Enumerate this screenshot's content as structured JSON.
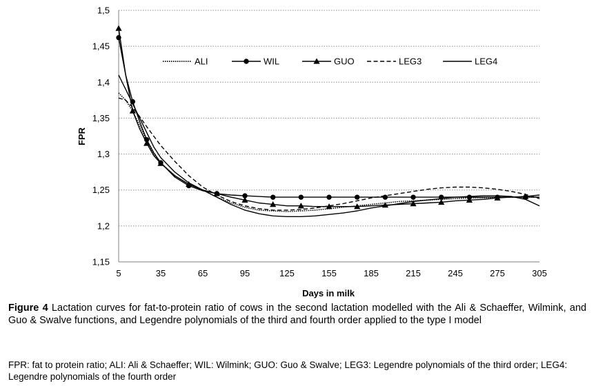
{
  "chart_data": {
    "type": "line",
    "ylabel": "FPR",
    "xlabel": "Days in milk",
    "xlim": [
      5,
      305
    ],
    "ylim": [
      1.15,
      1.5
    ],
    "x_ticks": [
      5,
      35,
      65,
      95,
      125,
      155,
      185,
      215,
      245,
      275,
      305
    ],
    "x_tick_labels": [
      "5",
      "35",
      "65",
      "95",
      "125",
      "155",
      "185",
      "215",
      "245",
      "275",
      "305"
    ],
    "y_ticks": [
      1.15,
      1.2,
      1.25,
      1.3,
      1.35,
      1.4,
      1.45,
      1.5
    ],
    "y_tick_labels": [
      "1,15",
      "1,2",
      "1,25",
      "1,3",
      "1,35",
      "1,4",
      "1,45",
      "1,5"
    ],
    "grid": "horizontal dotted",
    "legend_position": "top",
    "series": [
      {
        "name": "ALI",
        "style": "dotted",
        "marker": "none",
        "x": [
          5,
          10,
          15,
          20,
          25,
          30,
          35,
          45,
          55,
          65,
          75,
          85,
          95,
          105,
          115,
          125,
          135,
          145,
          155,
          165,
          175,
          185,
          195,
          205,
          215,
          225,
          235,
          245,
          255,
          265,
          275,
          285,
          295,
          305
        ],
        "y": [
          1.385,
          1.375,
          1.36,
          1.34,
          1.318,
          1.3,
          1.288,
          1.27,
          1.258,
          1.25,
          1.24,
          1.232,
          1.226,
          1.222,
          1.221,
          1.22,
          1.221,
          1.222,
          1.224,
          1.226,
          1.228,
          1.23,
          1.232,
          1.234,
          1.235,
          1.236,
          1.237,
          1.238,
          1.239,
          1.239,
          1.24,
          1.24,
          1.24,
          1.24
        ]
      },
      {
        "name": "WIL",
        "style": "solid",
        "marker": "circle",
        "x": [
          5,
          10,
          15,
          20,
          25,
          30,
          35,
          45,
          55,
          65,
          75,
          85,
          95,
          105,
          115,
          125,
          135,
          145,
          155,
          165,
          175,
          185,
          195,
          205,
          215,
          225,
          235,
          245,
          255,
          265,
          275,
          285,
          295,
          305
        ],
        "y": [
          1.462,
          1.41,
          1.373,
          1.345,
          1.32,
          1.302,
          1.288,
          1.268,
          1.256,
          1.249,
          1.245,
          1.243,
          1.242,
          1.241,
          1.24,
          1.24,
          1.24,
          1.24,
          1.24,
          1.24,
          1.24,
          1.24,
          1.24,
          1.24,
          1.24,
          1.24,
          1.24,
          1.24,
          1.24,
          1.24,
          1.24,
          1.24,
          1.24,
          1.24
        ]
      },
      {
        "name": "GUO",
        "style": "solid",
        "marker": "triangle",
        "x": [
          5,
          10,
          15,
          20,
          25,
          30,
          35,
          45,
          55,
          65,
          75,
          85,
          95,
          105,
          115,
          125,
          135,
          145,
          155,
          165,
          175,
          185,
          195,
          205,
          215,
          225,
          235,
          245,
          255,
          265,
          275,
          285,
          295,
          305
        ],
        "y": [
          1.475,
          1.41,
          1.36,
          1.335,
          1.315,
          1.298,
          1.287,
          1.27,
          1.258,
          1.25,
          1.245,
          1.24,
          1.236,
          1.232,
          1.23,
          1.228,
          1.228,
          1.227,
          1.227,
          1.227,
          1.227,
          1.228,
          1.229,
          1.23,
          1.231,
          1.232,
          1.233,
          1.235,
          1.236,
          1.237,
          1.239,
          1.24,
          1.241,
          1.243
        ]
      },
      {
        "name": "LEG3",
        "style": "dashed",
        "marker": "none",
        "x": [
          5,
          10,
          15,
          20,
          25,
          30,
          35,
          45,
          55,
          65,
          75,
          85,
          95,
          105,
          115,
          125,
          135,
          145,
          155,
          165,
          175,
          185,
          195,
          205,
          215,
          225,
          235,
          245,
          255,
          265,
          275,
          285,
          295,
          305
        ],
        "y": [
          1.378,
          1.375,
          1.365,
          1.352,
          1.338,
          1.325,
          1.312,
          1.29,
          1.27,
          1.254,
          1.243,
          1.234,
          1.228,
          1.224,
          1.222,
          1.222,
          1.223,
          1.225,
          1.228,
          1.231,
          1.235,
          1.239,
          1.242,
          1.245,
          1.248,
          1.251,
          1.253,
          1.254,
          1.254,
          1.253,
          1.251,
          1.248,
          1.244,
          1.238
        ]
      },
      {
        "name": "LEG4",
        "style": "solid",
        "marker": "none",
        "x": [
          5,
          10,
          15,
          20,
          25,
          30,
          35,
          45,
          55,
          65,
          75,
          85,
          95,
          105,
          115,
          125,
          135,
          145,
          155,
          165,
          175,
          185,
          195,
          205,
          215,
          225,
          235,
          245,
          255,
          265,
          275,
          285,
          295,
          305
        ],
        "y": [
          1.41,
          1.39,
          1.37,
          1.35,
          1.33,
          1.31,
          1.295,
          1.275,
          1.26,
          1.25,
          1.24,
          1.23,
          1.222,
          1.217,
          1.214,
          1.213,
          1.213,
          1.214,
          1.216,
          1.218,
          1.221,
          1.225,
          1.228,
          1.231,
          1.234,
          1.236,
          1.238,
          1.24,
          1.241,
          1.242,
          1.242,
          1.241,
          1.237,
          1.228
        ]
      }
    ]
  },
  "caption": {
    "label": "Figure 4",
    "text": " Lactation curves for fat-to-protein ratio of cows in the second lactation modelled with the Ali & Schaeffer, Wilmink, and Guo & Swalve functions, and Legendre polynomials of the third and fourth order applied to the type I model"
  },
  "footnote": "FPR: fat to protein ratio; ALI: Ali & Schaeffer; WIL: Wilmink; GUO: Guo & Swalve; LEG3: Legendre polynomials of the third order; LEG4: Legendre polynomials of the fourth order"
}
